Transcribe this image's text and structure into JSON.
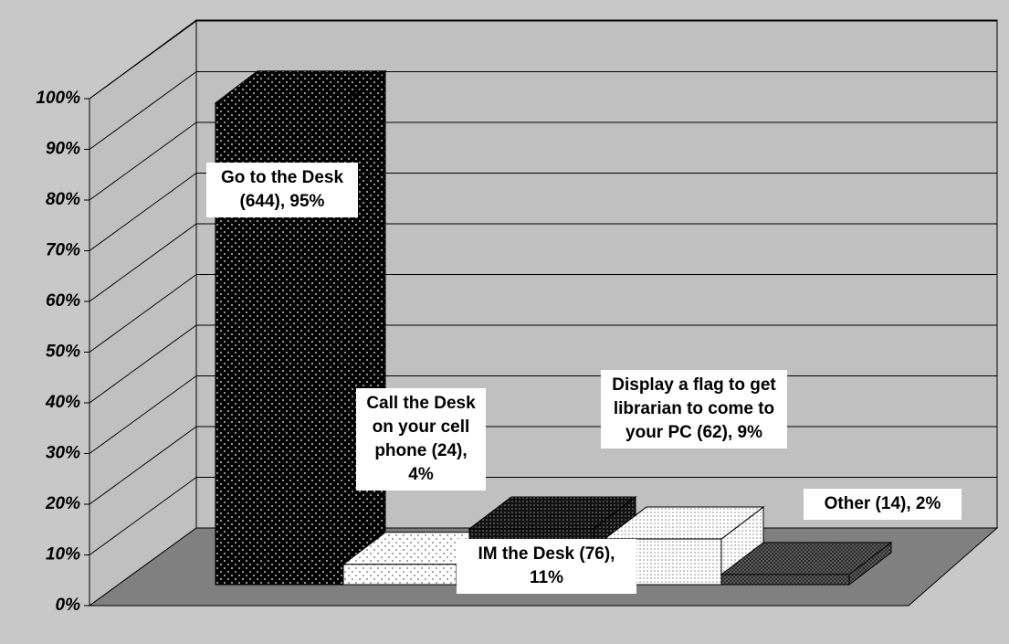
{
  "chart_data": {
    "type": "bar3d",
    "categories": [
      null,
      null,
      null,
      null,
      null
    ],
    "values": [
      95,
      4,
      11,
      9,
      2
    ],
    "value_labels": [
      "Go to the Desk (644), 95%",
      "Call the Desk on your cell phone (24), 4%",
      "IM the Desk (76), 11%",
      "Display a flag to get librarian to come to your PC (62), 9%",
      "Other (14), 2%"
    ],
    "colors": [
      "#000000",
      "#ffffff",
      "#1a1a1a",
      "#f0f0f0",
      "#505050"
    ],
    "ylim": [
      0,
      100
    ],
    "yticks": [
      {
        "value": 0,
        "label": "0%"
      },
      {
        "value": 10,
        "label": "10%"
      },
      {
        "value": 20,
        "label": "20%"
      },
      {
        "value": 30,
        "label": "30%"
      },
      {
        "value": 40,
        "label": "40%"
      },
      {
        "value": 50,
        "label": "50%"
      },
      {
        "value": 60,
        "label": "60%"
      },
      {
        "value": 70,
        "label": "70%"
      },
      {
        "value": 80,
        "label": "80%"
      },
      {
        "value": 90,
        "label": "90%"
      },
      {
        "value": 100,
        "label": "100%"
      }
    ],
    "grid": true
  }
}
